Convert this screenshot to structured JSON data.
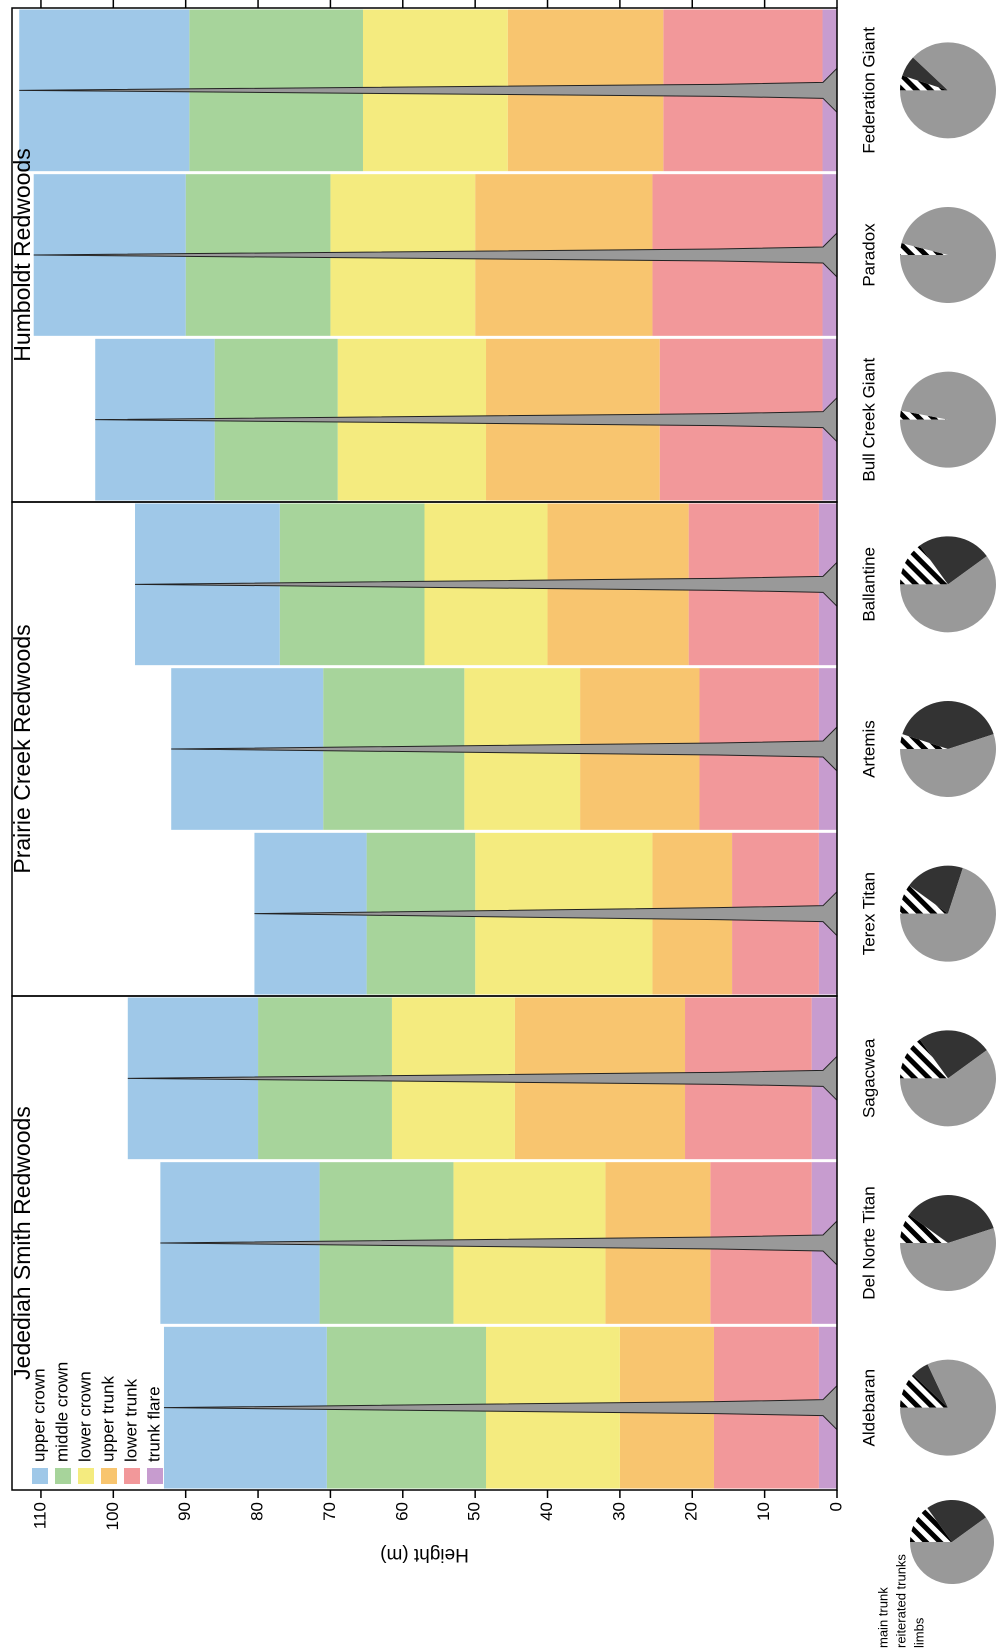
{
  "chart_data": [
    {
      "type": "stacked-bar",
      "title": "Jedediah Smith Redwoods",
      "y_label": "Height (m)",
      "ylim": [
        0,
        114
      ],
      "yticks": [
        0,
        10,
        20,
        30,
        40,
        50,
        60,
        70,
        80,
        90,
        100,
        110
      ],
      "categories": [
        "Aldebaran",
        "Del Norte Titan",
        "Sagacwea"
      ],
      "series": [
        {
          "name": "trunk flare",
          "color": "#c79ccf",
          "values": [
            2.5,
            3.5,
            3.5
          ]
        },
        {
          "name": "lower trunk",
          "color": "#f2989a",
          "values": [
            14.5,
            14,
            17.5
          ]
        },
        {
          "name": "upper trunk",
          "color": "#f8c56f",
          "values": [
            13,
            14.5,
            23.5
          ]
        },
        {
          "name": "lower crown",
          "color": "#f4eb7f",
          "values": [
            18.5,
            21,
            17
          ]
        },
        {
          "name": "middle crown",
          "color": "#a7d49b",
          "values": [
            22,
            18.5,
            18.5
          ]
        },
        {
          "name": "upper crown",
          "color": "#9fc8e8",
          "values": [
            22.5,
            22,
            18
          ]
        }
      ],
      "pie_labels": [
        "main trunk",
        "reiterated trunks",
        "limbs"
      ],
      "pie_colors": [
        "#999999",
        "#333333",
        "#000000"
      ],
      "pie_hatched": [
        false,
        false,
        true
      ],
      "pie_legend_values": [
        60,
        25,
        15
      ],
      "pies": [
        [
          82,
          6,
          12
        ],
        [
          55,
          35,
          10
        ],
        [
          60,
          25,
          15
        ]
      ]
    },
    {
      "type": "stacked-bar",
      "title": "Prairie Creek Redwoods",
      "ylim": [
        0,
        114
      ],
      "categories": [
        "Terex Titan",
        "Artemis",
        "Ballantine"
      ],
      "series": [
        {
          "name": "trunk flare",
          "color": "#c79ccf",
          "values": [
            2.5,
            2.5,
            2.5
          ]
        },
        {
          "name": "lower trunk",
          "color": "#f2989a",
          "values": [
            12,
            16.5,
            18
          ]
        },
        {
          "name": "upper trunk",
          "color": "#f8c56f",
          "values": [
            11,
            16.5,
            19.5
          ]
        },
        {
          "name": "lower crown",
          "color": "#f4eb7f",
          "values": [
            24.5,
            16,
            17
          ]
        },
        {
          "name": "middle crown",
          "color": "#a7d49b",
          "values": [
            15,
            19.5,
            20
          ]
        },
        {
          "name": "upper crown",
          "color": "#9fc8e8",
          "values": [
            15.5,
            21,
            20
          ]
        }
      ],
      "pies": [
        [
          70,
          20,
          10
        ],
        [
          55,
          40,
          5
        ],
        [
          60,
          25,
          15
        ]
      ]
    },
    {
      "type": "stacked-bar",
      "title": "Humboldt Redwoods",
      "ylim": [
        0,
        114
      ],
      "categories": [
        "Bull Creek Giant",
        "Paradox",
        "Federation Giant"
      ],
      "series": [
        {
          "name": "trunk flare",
          "color": "#c79ccf",
          "values": [
            2,
            2,
            2
          ]
        },
        {
          "name": "lower trunk",
          "color": "#f2989a",
          "values": [
            22.5,
            23.5,
            22
          ]
        },
        {
          "name": "upper trunk",
          "color": "#f8c56f",
          "values": [
            24,
            24.5,
            21.5
          ]
        },
        {
          "name": "lower crown",
          "color": "#f4eb7f",
          "values": [
            20.5,
            20,
            20
          ]
        },
        {
          "name": "middle crown",
          "color": "#a7d49b",
          "values": [
            17,
            20,
            24
          ]
        },
        {
          "name": "upper crown",
          "color": "#9fc8e8",
          "values": [
            16.5,
            21,
            23.5
          ]
        }
      ],
      "pies": [
        [
          97,
          0,
          3
        ],
        [
          96,
          0,
          4
        ],
        [
          88,
          7,
          5
        ]
      ]
    }
  ]
}
